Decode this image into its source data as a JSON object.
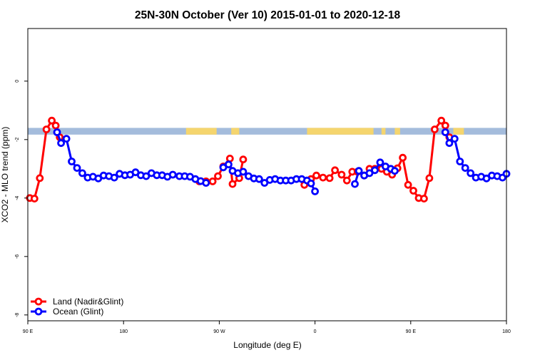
{
  "chart_data": {
    "type": "line",
    "title": "25N-30N October (Ver 10)   2015-01-01 to 2020-12-18",
    "xlabel": "Longitude (deg E)",
    "ylabel": "XCO2 - MLO trend (ppm)",
    "xlim": [
      90,
      450
    ],
    "ylim": [
      -8.2,
      1.8
    ],
    "x_ticks": [
      {
        "value": 90,
        "label": "90 E"
      },
      {
        "value": 162,
        "label": "180"
      },
      {
        "value": 234,
        "label": "90 W"
      },
      {
        "value": 306,
        "label": "0"
      },
      {
        "value": 378,
        "label": "90 E"
      },
      {
        "value": 450,
        "label": "180"
      }
    ],
    "y_ticks": [
      {
        "value": 0,
        "label": "0"
      },
      {
        "value": -2,
        "label": "-2"
      },
      {
        "value": -4,
        "label": "-4"
      },
      {
        "value": -6,
        "label": "-6"
      },
      {
        "value": -8,
        "label": "-8"
      }
    ],
    "grid": false,
    "legend_position": "bottom-left",
    "land_ocean_band": {
      "y_top": -1.6,
      "y_bottom": -1.83,
      "ocean_color": "#a4bcdc",
      "land_color": "#f5d56e",
      "land_ranges": [
        [
          209,
          232
        ],
        [
          243,
          249
        ],
        [
          300,
          350
        ],
        [
          356,
          359
        ],
        [
          366,
          370
        ],
        [
          410,
          418
        ]
      ]
    },
    "series": [
      {
        "name": "Land (Nadir&Glint)",
        "color": "#ff0000",
        "segments": [
          [
            [
              91.5,
              -4.0
            ],
            [
              95,
              -4.02
            ],
            [
              99,
              -3.32
            ],
            [
              104,
              -1.65
            ],
            [
              108,
              -1.35
            ],
            [
              111,
              -1.52
            ],
            [
              114,
              -1.92
            ]
          ],
          [
            [
              219,
              -3.43
            ],
            [
              224,
              -3.43
            ],
            [
              229,
              -3.43
            ],
            [
              233,
              -3.25
            ],
            [
              237,
              -2.92
            ],
            [
              242,
              -2.65
            ],
            [
              244,
              -3.52
            ],
            [
              249,
              -3.32
            ],
            [
              252,
              -2.68
            ]
          ],
          [
            [
              298,
              -3.55
            ],
            [
              303,
              -3.35
            ],
            [
              307,
              -3.23
            ],
            [
              312,
              -3.3
            ],
            [
              317,
              -3.32
            ],
            [
              321,
              -3.05
            ],
            [
              326,
              -3.2
            ],
            [
              330,
              -3.4
            ],
            [
              334,
              -3.1
            ],
            [
              338,
              -3.1
            ],
            [
              343,
              -3.23
            ],
            [
              347,
              -3.0
            ],
            [
              351,
              -3.0
            ],
            [
              356,
              -3.0
            ],
            [
              360,
              -3.1
            ],
            [
              364,
              -3.2
            ],
            [
              368,
              -2.98
            ],
            [
              372,
              -2.62
            ],
            [
              376,
              -3.55
            ],
            [
              380,
              -3.75
            ],
            [
              384,
              -4.0
            ],
            [
              388,
              -4.02
            ],
            [
              392,
              -3.32
            ],
            [
              396,
              -1.65
            ],
            [
              401,
              -1.35
            ],
            [
              404,
              -1.52
            ],
            [
              407,
              -1.92
            ]
          ]
        ]
      },
      {
        "name": "Ocean (Glint)",
        "color": "#0000ff",
        "segments": [
          [
            [
              112,
              -1.75
            ],
            [
              115,
              -2.12
            ],
            [
              119,
              -1.97
            ],
            [
              123,
              -2.75
            ],
            [
              127,
              -2.97
            ],
            [
              131,
              -3.15
            ],
            [
              135,
              -3.3
            ],
            [
              139,
              -3.27
            ],
            [
              143,
              -3.33
            ],
            [
              147,
              -3.23
            ],
            [
              151,
              -3.25
            ],
            [
              155,
              -3.3
            ],
            [
              159,
              -3.17
            ],
            [
              163,
              -3.22
            ],
            [
              167,
              -3.2
            ],
            [
              171,
              -3.12
            ],
            [
              175,
              -3.22
            ],
            [
              179,
              -3.25
            ],
            [
              183,
              -3.15
            ],
            [
              187,
              -3.22
            ],
            [
              191,
              -3.22
            ],
            [
              195,
              -3.27
            ],
            [
              199,
              -3.2
            ],
            [
              204,
              -3.25
            ],
            [
              208,
              -3.25
            ],
            [
              212,
              -3.27
            ],
            [
              216,
              -3.35
            ],
            [
              220,
              -3.42
            ],
            [
              224,
              -3.48
            ]
          ],
          [
            [
              237,
              -2.95
            ],
            [
              241,
              -2.85
            ],
            [
              244,
              -3.07
            ],
            [
              248,
              -3.15
            ],
            [
              252,
              -3.1
            ],
            [
              256,
              -3.25
            ],
            [
              260,
              -3.33
            ],
            [
              264,
              -3.35
            ],
            [
              268,
              -3.48
            ],
            [
              272,
              -3.38
            ],
            [
              276,
              -3.35
            ],
            [
              280,
              -3.4
            ],
            [
              284,
              -3.4
            ],
            [
              288,
              -3.4
            ],
            [
              292,
              -3.35
            ],
            [
              296,
              -3.35
            ],
            [
              300,
              -3.4
            ],
            [
              303,
              -3.5
            ],
            [
              306,
              -3.77
            ]
          ],
          [
            [
              336,
              -3.52
            ],
            [
              339,
              -3.07
            ],
            [
              343,
              -3.23
            ],
            [
              347,
              -3.15
            ],
            [
              351,
              -3.05
            ],
            [
              355,
              -2.78
            ],
            [
              359,
              -2.92
            ],
            [
              363,
              -3.0
            ],
            [
              366,
              -3.07
            ]
          ],
          [
            [
              404,
              -1.75
            ],
            [
              407,
              -2.12
            ],
            [
              411,
              -1.97
            ],
            [
              415,
              -2.75
            ],
            [
              419,
              -2.97
            ],
            [
              423,
              -3.15
            ],
            [
              427,
              -3.3
            ],
            [
              431,
              -3.27
            ],
            [
              435,
              -3.33
            ],
            [
              439,
              -3.23
            ],
            [
              443,
              -3.25
            ],
            [
              447,
              -3.3
            ],
            [
              450,
              -3.17
            ]
          ]
        ]
      }
    ]
  }
}
